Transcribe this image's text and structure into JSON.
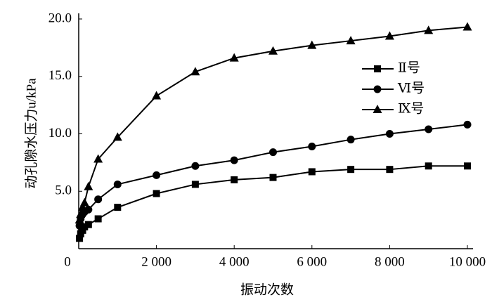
{
  "chart_data": {
    "type": "line",
    "x_label": "振动次数",
    "y_label": "动孔隙水压力u/kPa",
    "x": [
      20,
      50,
      100,
      150,
      250,
      500,
      1000,
      2000,
      3000,
      4000,
      5000,
      6000,
      7000,
      8000,
      9000,
      10000
    ],
    "series": [
      {
        "name": "Ⅱ号",
        "color": "#000000",
        "marker": "square",
        "values": [
          0.9,
          1.3,
          1.6,
          1.9,
          2.1,
          2.6,
          3.6,
          4.8,
          5.6,
          6.0,
          6.2,
          6.7,
          6.9,
          6.9,
          7.2,
          7.2
        ]
      },
      {
        "name": "Ⅵ号",
        "color": "#000000",
        "marker": "circle",
        "values": [
          2.0,
          2.6,
          3.0,
          3.2,
          3.4,
          4.3,
          5.6,
          6.4,
          7.2,
          7.7,
          8.4,
          8.9,
          9.5,
          10.0,
          10.4,
          10.8
        ]
      },
      {
        "name": "Ⅸ号",
        "color": "#000000",
        "marker": "triangle",
        "values": [
          2.5,
          3.0,
          3.6,
          4.0,
          5.4,
          7.8,
          9.7,
          13.3,
          15.4,
          16.6,
          17.2,
          17.7,
          18.1,
          18.5,
          19.0,
          19.3
        ]
      }
    ],
    "xlim": [
      0,
      10000
    ],
    "ylim": [
      0,
      20
    ],
    "xticks": [
      0,
      {
        "value": 2000,
        "label": "2 000"
      },
      {
        "value": 4000,
        "label": "4 000"
      },
      {
        "value": 6000,
        "label": "6 000"
      },
      {
        "value": 8000,
        "label": "8 000"
      },
      {
        "value": 10000,
        "label": "10 000"
      }
    ],
    "yticks": [
      {
        "value": 5,
        "label": "5.0"
      },
      {
        "value": 10,
        "label": "10.0"
      },
      {
        "value": 15,
        "label": "15.0"
      },
      {
        "value": 20,
        "label": "20.0"
      }
    ],
    "grid": false,
    "legend": "upper right"
  }
}
